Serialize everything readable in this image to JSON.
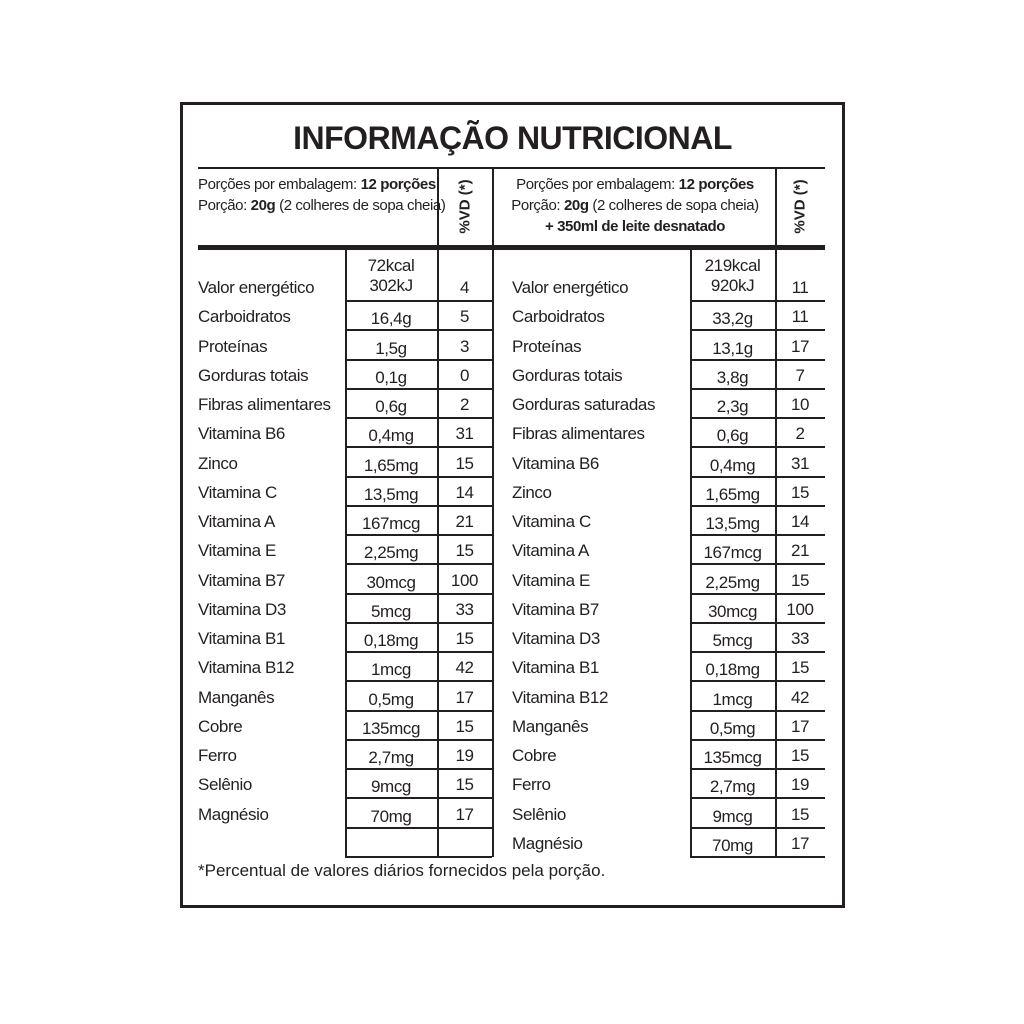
{
  "title": "INFORMAÇÃO NUTRICIONAL",
  "vd_header": "%VD (*)",
  "left": {
    "header": [
      [
        {
          "t": "Porções por embalagem: ",
          "b": false
        },
        {
          "t": "12 porções",
          "b": true
        }
      ],
      [
        {
          "t": "Porção: ",
          "b": false
        },
        {
          "t": "20g",
          "b": true
        },
        {
          "t": " (2 colheres de sopa cheia)",
          "b": false
        }
      ]
    ],
    "rows": [
      [
        "Valor energético",
        [
          "72kcal",
          "302kJ"
        ],
        4
      ],
      [
        "Carboidratos",
        "16,4g",
        5
      ],
      [
        "Proteínas",
        "1,5g",
        3
      ],
      [
        "Gorduras totais",
        "0,1g",
        0
      ],
      [
        "Fibras alimentares",
        "0,6g",
        2
      ],
      [
        "Vitamina B6",
        "0,4mg",
        31
      ],
      [
        "Zinco",
        "1,65mg",
        15
      ],
      [
        "Vitamina C",
        "13,5mg",
        14
      ],
      [
        "Vitamina A",
        "167mcg",
        21
      ],
      [
        "Vitamina E",
        "2,25mg",
        15
      ],
      [
        "Vitamina B7",
        "30mcg",
        100
      ],
      [
        "Vitamina D3",
        "5mcg",
        33
      ],
      [
        "Vitamina B1",
        "0,18mg",
        15
      ],
      [
        "Vitamina B12",
        "1mcg",
        42
      ],
      [
        "Manganês",
        "0,5mg",
        17
      ],
      [
        "Cobre",
        "135mcg",
        15
      ],
      [
        "Ferro",
        "2,7mg",
        19
      ],
      [
        "Selênio",
        "9mcg",
        15
      ],
      [
        "Magnésio",
        "70mg",
        17
      ]
    ]
  },
  "right": {
    "header": [
      [
        {
          "t": "Porções por embalagem: ",
          "b": false
        },
        {
          "t": "12 porções",
          "b": true
        }
      ],
      [
        {
          "t": "Porção: ",
          "b": false
        },
        {
          "t": "20g",
          "b": true
        },
        {
          "t": " (2 colheres de sopa cheia)",
          "b": false
        }
      ],
      [
        {
          "t": "+ 350ml de leite desnatado",
          "b": true
        }
      ]
    ],
    "rows": [
      [
        "Valor energético",
        [
          "219kcal",
          "920kJ"
        ],
        11
      ],
      [
        "Carboidratos",
        "33,2g",
        11
      ],
      [
        "Proteínas",
        "13,1g",
        17
      ],
      [
        "Gorduras totais",
        "3,8g",
        7
      ],
      [
        "Gorduras saturadas",
        "2,3g",
        10
      ],
      [
        "Fibras alimentares",
        "0,6g",
        2
      ],
      [
        "Vitamina B6",
        "0,4mg",
        31
      ],
      [
        "Zinco",
        "1,65mg",
        15
      ],
      [
        "Vitamina C",
        "13,5mg",
        14
      ],
      [
        "Vitamina A",
        "167mcg",
        21
      ],
      [
        "Vitamina E",
        "2,25mg",
        15
      ],
      [
        "Vitamina B7",
        "30mcg",
        100
      ],
      [
        "Vitamina D3",
        "5mcg",
        33
      ],
      [
        "Vitamina B1",
        "0,18mg",
        15
      ],
      [
        "Vitamina B12",
        "1mcg",
        42
      ],
      [
        "Manganês",
        "0,5mg",
        17
      ],
      [
        "Cobre",
        "135mcg",
        15
      ],
      [
        "Ferro",
        "2,7mg",
        19
      ],
      [
        "Selênio",
        "9mcg",
        15
      ],
      [
        "Magnésio",
        "70mg",
        17
      ]
    ]
  },
  "footnote": "*Percentual de valores diários fornecidos pela porção."
}
